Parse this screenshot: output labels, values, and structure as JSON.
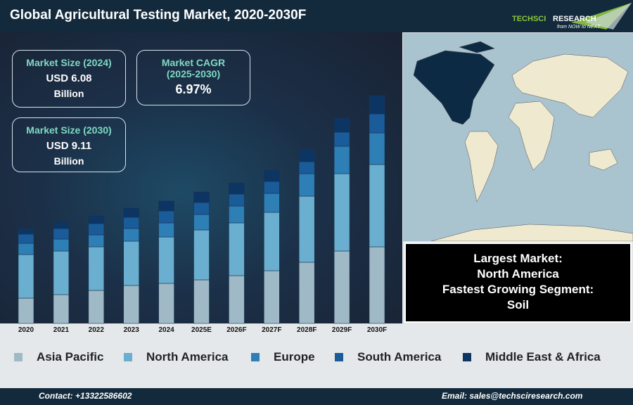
{
  "header": {
    "title": "Global Agricultural Testing Market, 2020-2030F",
    "logo_text": "TechSci Research",
    "logo_tagline": "from NOW to NEXT"
  },
  "cards": {
    "size2024": {
      "label": "Market Size (2024)",
      "value": "USD 6.08",
      "unit": "Billion"
    },
    "cagr": {
      "label1": "Market CAGR",
      "label2": "(2025-2030)",
      "value": "6.97%"
    },
    "size2030": {
      "label": "Market Size (2030)",
      "value": "USD 9.11",
      "unit": "Billion"
    }
  },
  "insight": {
    "l1": "Largest Market:",
    "l2": "North America",
    "l3": "Fastest Growing Segment:",
    "l4": "Soil"
  },
  "footer": {
    "contact": "Contact: +13322586602",
    "email": "Email: sales@techsciresearch.com"
  },
  "chart_data": {
    "type": "bar",
    "stacked": true,
    "grid": false,
    "legend": "bottom",
    "categories": [
      "2020",
      "2021",
      "2022",
      "2023",
      "2024",
      "2025E",
      "2026F",
      "2027F",
      "2028F",
      "2029F",
      "2030F"
    ],
    "series": [
      {
        "name": "Asia Pacific",
        "color": "#9fbac6",
        "values": [
          36,
          41,
          47,
          54,
          57,
          62,
          68,
          75,
          87,
          103,
          109
        ]
      },
      {
        "name": "North America",
        "color": "#6aafcf",
        "values": [
          62,
          62,
          62,
          63,
          66,
          71,
          75,
          83,
          94,
          110,
          117
        ]
      },
      {
        "name": "Europe",
        "color": "#2d7fb5",
        "values": [
          16,
          17,
          17,
          18,
          20,
          22,
          24,
          27,
          32,
          39,
          45
        ]
      },
      {
        "name": "South America",
        "color": "#1a5b9a",
        "values": [
          13,
          15,
          16,
          16,
          17,
          17,
          17,
          17,
          17,
          20,
          27
        ]
      },
      {
        "name": "Middle East & Africa",
        "color": "#0d3563",
        "values": [
          8,
          9,
          11,
          13,
          14,
          15,
          16,
          16,
          17,
          20,
          26
        ]
      }
    ]
  }
}
